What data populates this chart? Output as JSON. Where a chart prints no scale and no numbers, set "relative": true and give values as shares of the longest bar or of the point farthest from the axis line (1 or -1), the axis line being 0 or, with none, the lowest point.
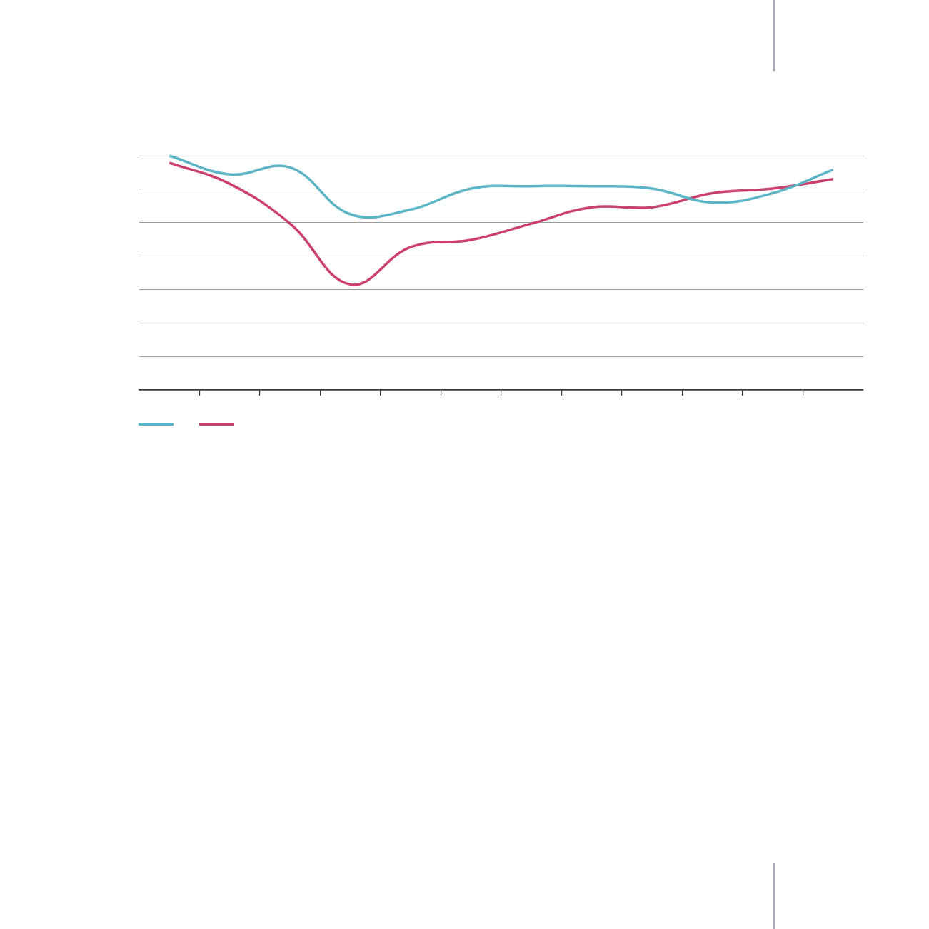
{
  "chart_data": {
    "type": "line",
    "relative": true,
    "categories": [
      null,
      null,
      null,
      null,
      null,
      null,
      null,
      null,
      null,
      null,
      null,
      null
    ],
    "series": [
      {
        "color": "#5bb5c6",
        "values": [
          1,
          0.92,
          0.95,
          0.75,
          0.77,
          0.86,
          0.87,
          0.87,
          0.86,
          0.8,
          0.84,
          0.94
        ]
      },
      {
        "color": "#cc4070",
        "values": [
          0.97,
          0.88,
          0.71,
          0.45,
          0.61,
          0.64,
          0.71,
          0.78,
          0.78,
          0.84,
          0.86,
          0.9
        ]
      }
    ],
    "grid": "y",
    "tick_labels": false
  }
}
